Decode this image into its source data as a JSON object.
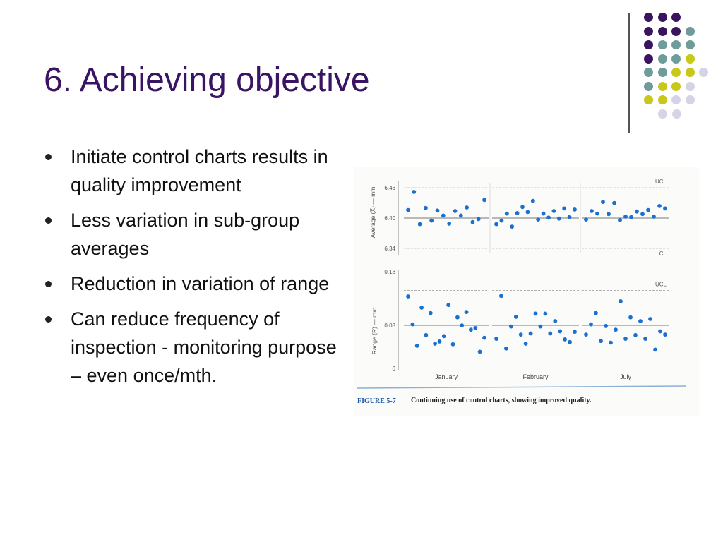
{
  "slide": {
    "title": "6. Achieving objective",
    "bullets": [
      "Initiate control charts results in quality improvement",
      "Less variation in sub-group averages",
      "Reduction in variation of range",
      "Can reduce frequency of inspection - monitoring purpose – even once/mth."
    ]
  },
  "decor": {
    "colors": {
      "purple": "#3b1460",
      "teal": "#6f9b9b",
      "olive": "#c8c81a",
      "lavender": "#d4d4e6"
    }
  },
  "figure": {
    "caption_label": "FIGURE 5-7",
    "caption_text": "Continuing use of control charts, showing improved quality.",
    "point_color": "#1a6fd0"
  },
  "chart_data": [
    {
      "type": "scatter",
      "title": "",
      "ylabel": "Average (X̅) — mm",
      "yticks": [
        "6.46",
        "6.40",
        "6.34"
      ],
      "ylim": [
        6.33,
        6.47
      ],
      "control_lines": {
        "UCL": 6.46,
        "center": 6.4,
        "LCL": 6.34
      },
      "line_labels": [
        "UCL",
        "LCL"
      ],
      "groups": [
        "January",
        "February",
        "July"
      ],
      "series": [
        {
          "group": "January",
          "values": [
            6.416,
            6.452,
            6.388,
            6.42,
            6.395,
            6.415,
            6.405,
            6.389,
            6.414,
            6.405,
            6.421,
            6.392,
            6.398,
            6.436
          ]
        },
        {
          "group": "February",
          "values": [
            6.388,
            6.395,
            6.409,
            6.383,
            6.41,
            6.422,
            6.412,
            6.434,
            6.397,
            6.409,
            6.401,
            6.414,
            6.399,
            6.419,
            6.402,
            6.417
          ]
        },
        {
          "group": "July",
          "values": [
            6.397,
            6.414,
            6.409,
            6.432,
            6.408,
            6.43,
            6.396,
            6.403,
            6.402,
            6.413,
            6.408,
            6.416,
            6.403,
            6.424,
            6.419
          ]
        }
      ]
    },
    {
      "type": "scatter",
      "title": "",
      "ylabel": "Range (R) — mm",
      "yticks": [
        "0.18",
        "0.08",
        "0"
      ],
      "ylim": [
        0,
        0.18
      ],
      "control_lines": {
        "UCL": 0.145,
        "center": 0.08
      },
      "line_labels": [
        "UCL"
      ],
      "groups": [
        "January",
        "February",
        "July"
      ],
      "series": [
        {
          "group": "January",
          "values": [
            0.134,
            0.082,
            0.042,
            0.113,
            0.062,
            0.103,
            0.046,
            0.05,
            0.06,
            0.118,
            0.045,
            0.095,
            0.08,
            0.105,
            0.072,
            0.075,
            0.031,
            0.057
          ]
        },
        {
          "group": "February",
          "values": [
            0.055,
            0.135,
            0.037,
            0.078,
            0.096,
            0.063,
            0.046,
            0.065,
            0.102,
            0.078,
            0.102,
            0.065,
            0.088,
            0.069,
            0.054,
            0.049,
            0.068
          ]
        },
        {
          "group": "July",
          "values": [
            0.063,
            0.082,
            0.103,
            0.051,
            0.079,
            0.048,
            0.072,
            0.125,
            0.055,
            0.095,
            0.062,
            0.088,
            0.055,
            0.092,
            0.035,
            0.069,
            0.063
          ]
        }
      ]
    }
  ]
}
